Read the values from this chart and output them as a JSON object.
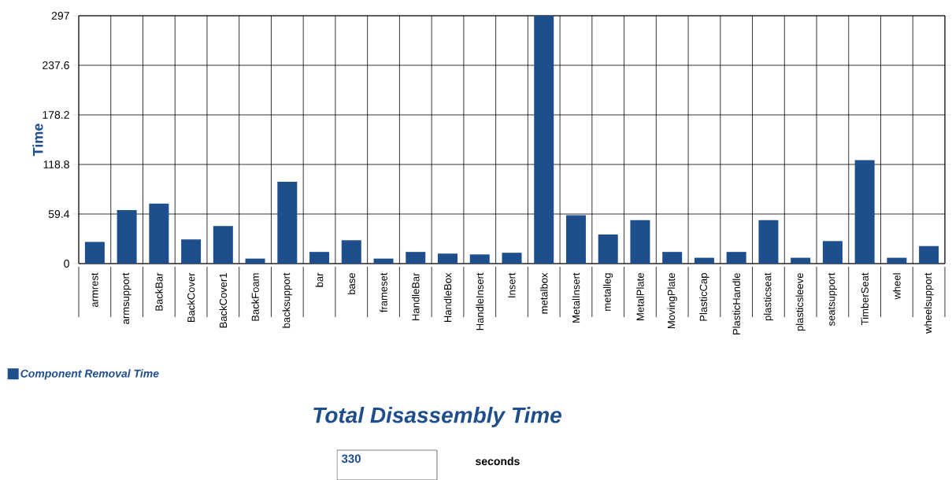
{
  "chart_data": {
    "type": "bar",
    "title": "Total Disassembly Time",
    "ylabel": "Time",
    "categories": [
      "armrest",
      "armsupport",
      "BackBar",
      "BackCover",
      "BackCover1",
      "BackFoam",
      "backsupport",
      "bar",
      "base",
      "frameset",
      "HandleBar",
      "HandleBox",
      "HandleInsert",
      "Insert",
      "metalbox",
      "MetalInsert",
      "metalleg",
      "MetalPlate",
      "MovingPlate",
      "PlasticCap",
      "PlasticHandle",
      "plasticseat",
      "plasticsleeve",
      "seatsupport",
      "TimberSeat",
      "wheel",
      "wheelsupport"
    ],
    "series": [
      {
        "name": "Component Removal Time",
        "color": "#1f4e8c",
        "values": [
          26,
          64,
          72,
          29,
          45,
          6,
          98,
          14,
          28,
          6,
          14,
          12,
          11,
          13,
          297,
          58,
          35,
          52,
          14,
          7,
          14,
          52,
          7,
          27,
          124,
          7,
          21
        ]
      }
    ],
    "ylim": [
      0,
      297
    ],
    "yticks": [
      0,
      59.4,
      118.8,
      178.2,
      237.6,
      297
    ],
    "grid": true,
    "legend": "bottom left",
    "annotations": [
      "330",
      "seconds"
    ]
  }
}
